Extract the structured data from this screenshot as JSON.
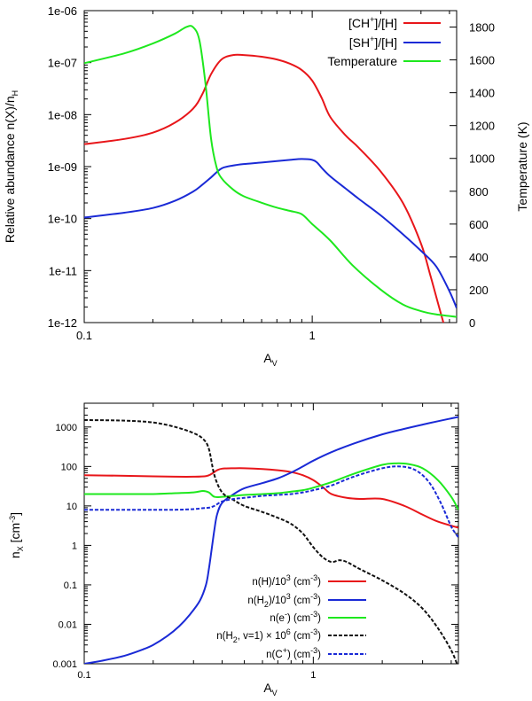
{
  "chart_data": [
    {
      "type": "line",
      "xscale": "log",
      "xlim": [
        0.1,
        4.3
      ],
      "ylim_left": [
        1e-12,
        1e-06
      ],
      "ylim_right": [
        0,
        1900
      ],
      "xticks": [
        {
          "v": 0.1,
          "label": "0.1"
        },
        {
          "v": 1,
          "label": "1"
        }
      ],
      "yticks_left": [
        {
          "v": 1e-12,
          "label": "1e-12"
        },
        {
          "v": 1e-11,
          "label": "1e-11"
        },
        {
          "v": 1e-10,
          "label": "1e-10"
        },
        {
          "v": 1e-09,
          "label": "1e-09"
        },
        {
          "v": 1e-08,
          "label": "1e-08"
        },
        {
          "v": 1e-07,
          "label": "1e-07"
        },
        {
          "v": 1e-06,
          "label": "1e-06"
        }
      ],
      "yticks_right": [
        {
          "v": 0,
          "label": "0"
        },
        {
          "v": 200,
          "label": "200"
        },
        {
          "v": 400,
          "label": "400"
        },
        {
          "v": 600,
          "label": "600"
        },
        {
          "v": 800,
          "label": "800"
        },
        {
          "v": 1000,
          "label": "1000"
        },
        {
          "v": 1200,
          "label": "1200"
        },
        {
          "v": 1400,
          "label": "1400"
        },
        {
          "v": 1600,
          "label": "1600"
        },
        {
          "v": 1800,
          "label": "1800"
        }
      ],
      "xlabel": {
        "main": "A",
        "sub": "V"
      },
      "ylabel_left": "Relative abundance n(X)/n",
      "ylabel_left_sub": "H",
      "ylabel_right": "Temperature (K)",
      "legend_position": "top-right",
      "series": [
        {
          "name": "[CH+]/[H]",
          "name_pre": "[CH",
          "name_sup": "+",
          "name_post": "]/[H]",
          "color": "#e8161a",
          "axis": "left",
          "dash": "",
          "x": [
            0.1,
            0.15,
            0.2,
            0.25,
            0.3,
            0.33,
            0.36,
            0.4,
            0.45,
            0.5,
            0.6,
            0.7,
            0.8,
            0.9,
            1.0,
            1.1,
            1.2,
            1.4,
            1.6,
            2.0,
            2.5,
            3.0,
            3.3,
            3.6,
            4.0,
            4.3
          ],
          "y": [
            2.7e-09,
            3.4e-09,
            4.5e-09,
            7e-09,
            1.3e-08,
            2.5e-08,
            6e-08,
            1.15e-07,
            1.4e-07,
            1.4e-07,
            1.3e-07,
            1.15e-07,
            9.5e-08,
            7.2e-08,
            4.5e-08,
            2.1e-08,
            9e-09,
            4e-09,
            2.3e-09,
            8e-10,
            2e-10,
            3.3e-11,
            8e-12,
            2e-12,
            4e-13,
            2e-13
          ]
        },
        {
          "name": "[SH+]/[H]",
          "name_pre": "[SH",
          "name_sup": "+",
          "name_post": "]/[H]",
          "color": "#1a2ad6",
          "axis": "left",
          "dash": "",
          "x": [
            0.1,
            0.15,
            0.2,
            0.25,
            0.3,
            0.33,
            0.36,
            0.4,
            0.45,
            0.5,
            0.6,
            0.7,
            0.8,
            0.9,
            1.0,
            1.05,
            1.1,
            1.2,
            1.4,
            1.6,
            2.0,
            2.5,
            3.0,
            3.5,
            4.0,
            4.3
          ],
          "y": [
            1.05e-10,
            1.3e-10,
            1.6e-10,
            2.2e-10,
            3.3e-10,
            4.5e-10,
            6.2e-10,
            9.2e-10,
            1.05e-09,
            1.12e-09,
            1.2e-09,
            1.28e-09,
            1.35e-09,
            1.4e-09,
            1.35e-09,
            1.2e-09,
            9.5e-10,
            6.5e-10,
            3.8e-10,
            2.4e-10,
            1.15e-10,
            5e-11,
            2.4e-11,
            1.2e-11,
            4e-12,
            1.9e-12
          ]
        },
        {
          "name": "Temperature",
          "name_pre": "Temperature",
          "name_sup": "",
          "name_post": "",
          "color": "#1ee81e",
          "axis": "right",
          "dash": "",
          "x": [
            0.1,
            0.15,
            0.2,
            0.25,
            0.28,
            0.3,
            0.32,
            0.34,
            0.36,
            0.38,
            0.4,
            0.45,
            0.5,
            0.6,
            0.7,
            0.8,
            0.9,
            1.0,
            1.2,
            1.5,
            2.0,
            2.5,
            3.0,
            3.5,
            4.3
          ],
          "y": [
            1580,
            1640,
            1700,
            1760,
            1800,
            1800,
            1720,
            1460,
            1120,
            950,
            880,
            810,
            770,
            730,
            700,
            680,
            660,
            600,
            500,
            350,
            200,
            110,
            70,
            50,
            35
          ]
        }
      ]
    },
    {
      "type": "line",
      "xscale": "log",
      "yscale": "log",
      "xlim": [
        0.1,
        4.3
      ],
      "ylim": [
        0.001,
        4000
      ],
      "xticks": [
        {
          "v": 0.1,
          "label": "0.1"
        },
        {
          "v": 1,
          "label": "1"
        }
      ],
      "yticks": [
        {
          "v": 0.001,
          "label": "0.001"
        },
        {
          "v": 0.01,
          "label": "0.01"
        },
        {
          "v": 0.1,
          "label": "0.1"
        },
        {
          "v": 1,
          "label": "1"
        },
        {
          "v": 10,
          "label": "10"
        },
        {
          "v": 100,
          "label": "100"
        },
        {
          "v": 1000,
          "label": "1000"
        }
      ],
      "xlabel": {
        "main": "A",
        "sub": "V"
      },
      "ylabel": {
        "main": "n",
        "sub": "X",
        "post": " [cm",
        "sup": "-3",
        "end": "]"
      },
      "legend_position": "bottom-right",
      "series": [
        {
          "name": "n(H)/10^3 (cm^-3)",
          "legend_html": "n(H)/10<tspan class=\"sub\" dy=\"-5\">3</tspan><tspan dy=\"5\"> (cm</tspan><tspan class=\"sub\" dy=\"-5\">-3</tspan><tspan dy=\"5\">)</tspan>",
          "color": "#e8161a",
          "dash": "",
          "x": [
            0.1,
            0.15,
            0.2,
            0.25,
            0.3,
            0.34,
            0.36,
            0.38,
            0.4,
            0.45,
            0.5,
            0.6,
            0.7,
            0.8,
            0.9,
            1.0,
            1.1,
            1.2,
            1.4,
            1.6,
            2.0,
            2.5,
            3.0,
            3.5,
            4.3
          ],
          "y": [
            60,
            58,
            56,
            55,
            55,
            57,
            65,
            80,
            88,
            90,
            90,
            86,
            80,
            72,
            60,
            45,
            30,
            20,
            16,
            15,
            15,
            10,
            6,
            4,
            2.8
          ]
        },
        {
          "name": "n(H2)/10^3 (cm^-3)",
          "legend_html": "n(H<tspan class=\"sub\" dy=\"4\">2</tspan><tspan dy=\"-4\">)/10</tspan><tspan class=\"sub\" dy=\"-5\">3</tspan><tspan dy=\"5\"> (cm</tspan><tspan class=\"sub\" dy=\"-5\">-3</tspan><tspan dy=\"5\">)</tspan>",
          "color": "#1a2ad6",
          "dash": "",
          "x": [
            0.1,
            0.12,
            0.15,
            0.18,
            0.2,
            0.23,
            0.26,
            0.29,
            0.32,
            0.34,
            0.35,
            0.36,
            0.37,
            0.38,
            0.4,
            0.45,
            0.5,
            0.6,
            0.7,
            0.8,
            0.9,
            1.0,
            1.2,
            1.5,
            2.0,
            2.5,
            3.0,
            3.5,
            4.3
          ],
          "y": [
            0.001,
            0.0012,
            0.0016,
            0.0023,
            0.003,
            0.005,
            0.009,
            0.018,
            0.04,
            0.1,
            0.25,
            0.8,
            2.5,
            6,
            12,
            20,
            28,
            38,
            50,
            70,
            100,
            140,
            230,
            380,
            650,
            900,
            1150,
            1400,
            1800
          ]
        },
        {
          "name": "n(e-) (cm^-3)",
          "legend_html": "n(e<tspan class=\"sub\" dy=\"-5\">-</tspan><tspan dy=\"5\">) (cm</tspan><tspan class=\"sub\" dy=\"-5\">-3</tspan><tspan dy=\"5\">)</tspan>",
          "color": "#1ee81e",
          "dash": "",
          "x": [
            0.1,
            0.15,
            0.2,
            0.25,
            0.3,
            0.33,
            0.35,
            0.37,
            0.4,
            0.45,
            0.5,
            0.6,
            0.7,
            0.8,
            0.9,
            1.0,
            1.2,
            1.5,
            2.0,
            2.3,
            2.6,
            3.0,
            3.5,
            4.0,
            4.3
          ],
          "y": [
            20,
            20,
            20,
            21,
            22,
            24,
            22,
            17,
            17,
            18,
            19,
            20,
            21,
            23,
            25,
            29,
            40,
            65,
            110,
            120,
            115,
            90,
            45,
            17,
            8
          ]
        },
        {
          "name": "n(H2, v=1) x 10^6 (cm^-3)",
          "legend_html": "n(H<tspan class=\"sub\" dy=\"4\">2</tspan><tspan dy=\"-4\">, v=1) × 10</tspan><tspan class=\"sub\" dy=\"-5\">6</tspan><tspan dy=\"5\"> (cm</tspan><tspan class=\"sub\" dy=\"-5\">-3</tspan><tspan dy=\"5\">)</tspan>",
          "color": "#111111",
          "dash": "4,2",
          "x": [
            0.1,
            0.15,
            0.2,
            0.25,
            0.3,
            0.33,
            0.35,
            0.37,
            0.4,
            0.45,
            0.5,
            0.6,
            0.7,
            0.8,
            0.9,
            1.0,
            1.1,
            1.2,
            1.3,
            1.4,
            1.6,
            2.0,
            2.5,
            3.0,
            3.5,
            4.0,
            4.3
          ],
          "y": [
            1500,
            1450,
            1300,
            1000,
            700,
            500,
            280,
            60,
            22,
            14,
            10,
            7,
            5,
            3.5,
            2,
            0.9,
            0.5,
            0.38,
            0.42,
            0.38,
            0.25,
            0.13,
            0.06,
            0.025,
            0.008,
            0.0022,
            0.0008
          ]
        },
        {
          "name": "n(C+) (cm^-3)",
          "legend_html": "n(C<tspan class=\"sub\" dy=\"-5\">+</tspan><tspan dy=\"5\">) (cm</tspan><tspan class=\"sub\" dy=\"-5\">-3</tspan><tspan dy=\"5\">)</tspan>",
          "color": "#1a2ad6",
          "dash": "4,2",
          "x": [
            0.1,
            0.15,
            0.2,
            0.25,
            0.3,
            0.33,
            0.35,
            0.37,
            0.4,
            0.45,
            0.5,
            0.6,
            0.7,
            0.8,
            0.9,
            1.0,
            1.2,
            1.5,
            2.0,
            2.4,
            2.8,
            3.2,
            3.6,
            4.0,
            4.3
          ],
          "y": [
            8,
            8,
            8,
            8,
            8.3,
            8.8,
            9,
            10,
            13,
            15,
            16,
            18,
            19,
            20,
            22,
            25,
            33,
            55,
            90,
            100,
            80,
            40,
            12,
            3,
            1.6
          ]
        }
      ]
    }
  ]
}
